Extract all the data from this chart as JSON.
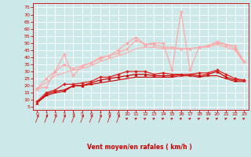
{
  "title": "",
  "xlabel": "Vent moyen/en rafales ( km/h )",
  "bg_color": "#cce8e8",
  "grid_color": "#ffffff",
  "x_ticks": [
    0,
    1,
    2,
    3,
    4,
    5,
    6,
    7,
    8,
    9,
    10,
    11,
    12,
    13,
    14,
    15,
    16,
    17,
    18,
    19,
    20,
    21,
    22,
    23
  ],
  "y_ticks": [
    5,
    10,
    15,
    20,
    25,
    30,
    35,
    40,
    45,
    50,
    55,
    60,
    65,
    70,
    75
  ],
  "ylim": [
    3,
    78
  ],
  "xlim": [
    -0.5,
    23.5
  ],
  "lines": [
    {
      "x": [
        0,
        1,
        2,
        3,
        4,
        5,
        6,
        7,
        8,
        9,
        10,
        11,
        12,
        13,
        14,
        15,
        16,
        17,
        18,
        19,
        20,
        21,
        22,
        23
      ],
      "y": [
        8,
        13,
        15,
        16,
        20,
        20,
        21,
        22,
        23,
        24,
        25,
        26,
        26,
        26,
        26,
        26,
        27,
        27,
        26,
        27,
        27,
        25,
        23,
        23
      ],
      "color": "#cc0000",
      "lw": 0.8,
      "marker": null,
      "ms": 0
    },
    {
      "x": [
        0,
        1,
        2,
        3,
        4,
        5,
        6,
        7,
        8,
        9,
        10,
        11,
        12,
        13,
        14,
        15,
        16,
        17,
        18,
        19,
        20,
        21,
        22,
        23
      ],
      "y": [
        8,
        14,
        16,
        17,
        20,
        20,
        22,
        24,
        25,
        26,
        27,
        28,
        28,
        27,
        27,
        27,
        28,
        28,
        27,
        28,
        30,
        26,
        24,
        24
      ],
      "color": "#cc0000",
      "lw": 0.9,
      "marker": "^",
      "ms": 2.5
    },
    {
      "x": [
        0,
        1,
        2,
        3,
        4,
        5,
        6,
        7,
        8,
        9,
        10,
        11,
        12,
        13,
        14,
        15,
        16,
        17,
        18,
        19,
        20,
        21,
        22,
        23
      ],
      "y": [
        9,
        15,
        17,
        21,
        21,
        22,
        23,
        26,
        26,
        28,
        30,
        30,
        30,
        28,
        29,
        28,
        28,
        28,
        29,
        29,
        31,
        28,
        25,
        24
      ],
      "color": "#dd2222",
      "lw": 0.9,
      "marker": "D",
      "ms": 2.0
    },
    {
      "x": [
        0,
        1,
        2,
        3,
        4,
        5,
        6,
        7,
        8,
        9,
        10,
        11,
        12,
        13,
        14,
        15,
        16,
        17,
        18,
        19,
        20,
        21,
        22,
        23
      ],
      "y": [
        18,
        19,
        30,
        42,
        27,
        34,
        36,
        40,
        41,
        45,
        50,
        54,
        49,
        50,
        50,
        31,
        72,
        31,
        47,
        48,
        51,
        49,
        46,
        37
      ],
      "color": "#ffaaaa",
      "lw": 0.9,
      "marker": "D",
      "ms": 2.0
    },
    {
      "x": [
        0,
        1,
        2,
        3,
        4,
        5,
        6,
        7,
        8,
        9,
        10,
        11,
        12,
        13,
        14,
        15,
        16,
        17,
        18,
        19,
        20,
        21,
        22,
        23
      ],
      "y": [
        18,
        25,
        30,
        35,
        32,
        34,
        36,
        39,
        41,
        43,
        46,
        52,
        49,
        49,
        47,
        47,
        46,
        46,
        47,
        48,
        50,
        49,
        48,
        37
      ],
      "color": "#ffaaaa",
      "lw": 0.9,
      "marker": "^",
      "ms": 2.5
    },
    {
      "x": [
        0,
        1,
        2,
        3,
        4,
        5,
        6,
        7,
        8,
        9,
        10,
        11,
        12,
        13,
        14,
        15,
        16,
        17,
        18,
        19,
        20,
        21,
        22,
        23
      ],
      "y": [
        18,
        22,
        27,
        29,
        31,
        32,
        34,
        37,
        39,
        41,
        43,
        46,
        47,
        47,
        46,
        46,
        46,
        46,
        47,
        47,
        49,
        47,
        45,
        36
      ],
      "color": "#ffaaaa",
      "lw": 0.8,
      "marker": null,
      "ms": 0
    }
  ],
  "xlabel_color": "#cc0000",
  "tick_color": "#cc0000",
  "axis_color": "#cc0000",
  "arrow_angles": [
    45,
    45,
    45,
    45,
    45,
    45,
    45,
    45,
    45,
    45,
    10,
    10,
    10,
    10,
    10,
    10,
    10,
    10,
    10,
    10,
    10,
    10,
    10,
    10
  ]
}
